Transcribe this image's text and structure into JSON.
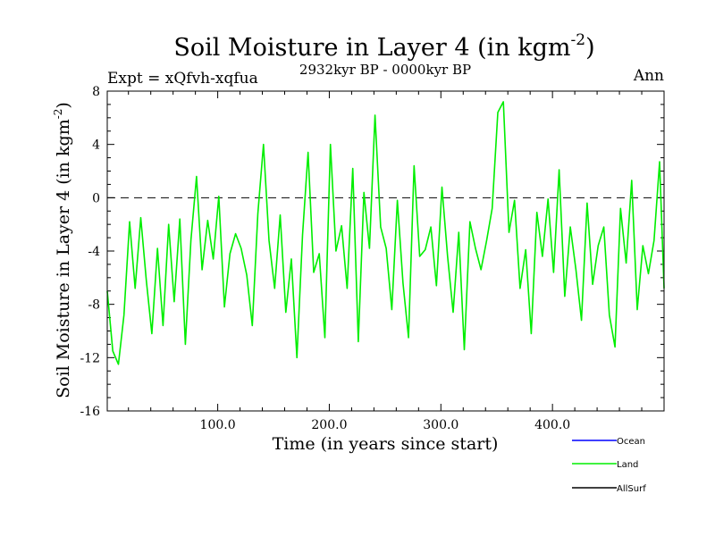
{
  "chart_data": {
    "type": "line",
    "title_main": "Soil Moisture in Layer 4 (in kgm",
    "title_sup": "-2",
    "title_close": ")",
    "subtitle_left": "Expt = xQfvh-xqfua",
    "subtitle_center": "2932kyr BP - 0000kyr BP",
    "subtitle_right": "Ann",
    "xlabel": "Time (in years since start)",
    "ylabel_main": "Soil Moisture in Layer 4 (in kgm",
    "ylabel_sup": "-2",
    "ylabel_close": ")",
    "xlim": [
      1,
      500
    ],
    "ylim": [
      -16,
      8
    ],
    "x_ticks": [
      {
        "value": 100,
        "label": "100.0"
      },
      {
        "value": 200,
        "label": "200.0"
      },
      {
        "value": 300,
        "label": "300.0"
      },
      {
        "value": 400,
        "label": "400.0"
      }
    ],
    "y_ticks": [
      {
        "value": 8,
        "label": "8"
      },
      {
        "value": 4,
        "label": "4"
      },
      {
        "value": 0,
        "label": "0"
      },
      {
        "value": -4,
        "label": "-4"
      },
      {
        "value": -8,
        "label": "-8"
      },
      {
        "value": -12,
        "label": "-12"
      },
      {
        "value": -16,
        "label": "-16"
      }
    ],
    "reference_line": {
      "y": 0,
      "style": "dashed"
    },
    "legend": [
      {
        "name": "Ocean",
        "color": "#0000ff"
      },
      {
        "name": "Land",
        "color": "#00ee00"
      },
      {
        "name": "AllSurf",
        "color": "#000000"
      }
    ],
    "series": [
      {
        "name": "Land",
        "color": "#00ee00",
        "x": [
          1,
          6,
          11,
          16,
          21,
          26,
          31,
          36,
          41,
          46,
          51,
          56,
          61,
          66,
          71,
          76,
          81,
          86,
          91,
          96,
          101,
          106,
          111,
          116,
          121,
          126,
          131,
          136,
          141,
          146,
          151,
          156,
          161,
          166,
          171,
          176,
          181,
          186,
          191,
          196,
          201,
          206,
          211,
          216,
          221,
          226,
          231,
          236,
          241,
          246,
          251,
          256,
          261,
          266,
          271,
          276,
          281,
          286,
          291,
          296,
          301,
          306,
          311,
          316,
          321,
          326,
          331,
          336,
          341,
          346,
          351,
          356,
          361,
          366,
          371,
          376,
          381,
          386,
          391,
          396,
          401,
          406,
          411,
          416,
          421,
          426,
          431,
          436,
          441,
          446,
          451,
          456,
          461,
          466,
          471,
          476,
          481,
          486,
          491,
          496,
          500
        ],
        "values": [
          -7,
          -11.5,
          -12.5,
          -8.8,
          -1.8,
          -6.8,
          -1.5,
          -6.2,
          -10.2,
          -3.8,
          -9.6,
          -2,
          -7.8,
          -1.6,
          -11,
          -3.2,
          1.6,
          -5.4,
          -1.7,
          -4.6,
          0.1,
          -8.2,
          -4.2,
          -2.7,
          -3.8,
          -5.8,
          -9.6,
          -1.2,
          4,
          -3.2,
          -6.8,
          -1.3,
          -8.6,
          -4.6,
          -12,
          -2.8,
          3.4,
          -5.6,
          -4.2,
          -10.5,
          4,
          -4,
          -2.1,
          -6.8,
          2.2,
          -10.8,
          0.4,
          -3.8,
          6.2,
          -2.2,
          -3.8,
          -8.4,
          -0.2,
          -6.4,
          -10.5,
          2.4,
          -4.4,
          -3.9,
          -2.2,
          -6.6,
          0.8,
          -4.4,
          -8.6,
          -2.6,
          -11.4,
          -1.8,
          -3.8,
          -5.4,
          -3.2,
          -0.8,
          6.4,
          7.2,
          -2.6,
          -0.2,
          -6.8,
          -3.9,
          -10.2,
          -1.1,
          -4.4,
          -0.1,
          -5.6,
          2.1,
          -7.4,
          -2.2,
          -5.4,
          -9.2,
          -0.4,
          -6.5,
          -3.6,
          -2.2,
          -8.8,
          -11.2,
          -0.8,
          -4.9,
          1.3,
          -8.4,
          -3.6,
          -5.7,
          -3.2,
          2.7,
          -6.8
        ]
      }
    ]
  }
}
